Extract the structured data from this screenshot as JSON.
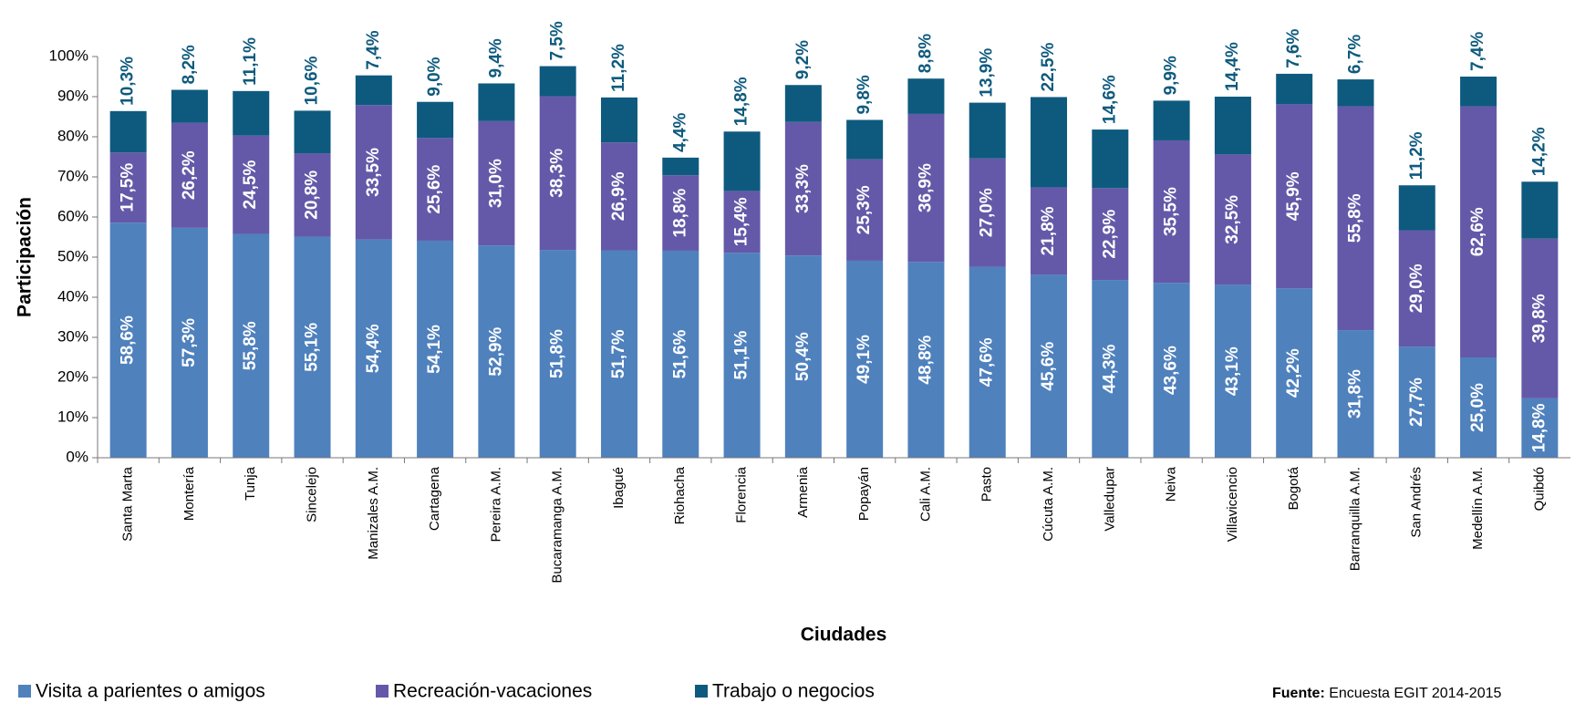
{
  "chart_data": {
    "type": "stacked_bar",
    "y_label": "Participación",
    "x_label": "Ciudades",
    "source_label": "Fuente:",
    "source_text": "Encuesta EGIT 2014-2015",
    "categories": [
      "Santa Marta",
      "Montería",
      "Tunja",
      "Sincelejo",
      "Manizales A.M.",
      "Cartagena",
      "Pereira A.M.",
      "Bucaramanga A.M.",
      "Ibagué",
      "Riohacha",
      "Florencia",
      "Armenia",
      "Popayán",
      "Cali A.M.",
      "Pasto",
      "Cúcuta A.M.",
      "Valledupar",
      "Neiva",
      "Villavicencio",
      "Bogotá",
      "Barranquilla A.M.",
      "San Andrés",
      "Medellín A.M.",
      "Quibdó"
    ],
    "series": [
      {
        "name": "Visita a parientes o amigos",
        "color": "#4f81bd",
        "values": [
          58.6,
          57.3,
          55.8,
          55.1,
          54.4,
          54.1,
          52.9,
          51.8,
          51.7,
          51.6,
          51.1,
          50.4,
          49.1,
          48.8,
          47.6,
          45.6,
          44.3,
          43.6,
          43.1,
          42.2,
          31.8,
          27.7,
          25.0,
          14.8
        ],
        "value_labels": [
          "58,6%",
          "57,3%",
          "55,8%",
          "55,1%",
          "54,4%",
          "54,1%",
          "52,9%",
          "51,8%",
          "51,7%",
          "51,6%",
          "51,1%",
          "50,4%",
          "49,1%",
          "48,8%",
          "47,6%",
          "45,6%",
          "44,3%",
          "43,6%",
          "43,1%",
          "42,2%",
          "31,8%",
          "27,7%",
          "25,0%",
          "14,8%"
        ]
      },
      {
        "name": "Recreación-vacaciones",
        "color": "#6459a8",
        "values": [
          17.5,
          26.2,
          24.5,
          20.8,
          33.5,
          25.6,
          31.0,
          38.3,
          26.9,
          18.8,
          15.4,
          33.3,
          25.3,
          36.9,
          27.0,
          21.8,
          22.9,
          35.5,
          32.5,
          45.9,
          55.8,
          29.0,
          62.6,
          39.8
        ],
        "value_labels": [
          "17,5%",
          "26,2%",
          "24,5%",
          "20,8%",
          "33,5%",
          "25,6%",
          "31,0%",
          "38,3%",
          "26,9%",
          "18,8%",
          "15,4%",
          "33,3%",
          "25,3%",
          "36,9%",
          "27,0%",
          "21,8%",
          "22,9%",
          "35,5%",
          "32,5%",
          "45,9%",
          "55,8%",
          "29,0%",
          "62,6%",
          "39,8%"
        ]
      },
      {
        "name": "Trabajo o negocios",
        "color": "#0e5a7e",
        "values": [
          10.3,
          8.2,
          11.1,
          10.6,
          7.4,
          9.0,
          9.4,
          7.5,
          11.2,
          4.4,
          14.8,
          9.2,
          9.8,
          8.8,
          13.9,
          22.5,
          14.6,
          9.9,
          14.4,
          7.6,
          6.7,
          11.2,
          7.4,
          14.2
        ],
        "value_labels": [
          "10,3%",
          "8,2%",
          "11,1%",
          "10,6%",
          "7,4%",
          "9,0%",
          "9,4%",
          "7,5%",
          "11,2%",
          "4,4%",
          "14,8%",
          "9,2%",
          "9,8%",
          "8,8%",
          "13,9%",
          "22,5%",
          "14,6%",
          "9,9%",
          "14,4%",
          "7,6%",
          "6,7%",
          "11,2%",
          "7,4%",
          "14,2%"
        ]
      }
    ],
    "ylim": [
      0,
      100
    ],
    "yticks": [
      {
        "value": 0,
        "label": "0%"
      },
      {
        "value": 10,
        "label": "10%"
      },
      {
        "value": 20,
        "label": "20%"
      },
      {
        "value": 30,
        "label": "30%"
      },
      {
        "value": 40,
        "label": "40%"
      },
      {
        "value": 50,
        "label": "50%"
      },
      {
        "value": 60,
        "label": "60%"
      },
      {
        "value": 70,
        "label": "70%"
      },
      {
        "value": 80,
        "label": "80%"
      },
      {
        "value": 90,
        "label": "90%"
      },
      {
        "value": 100,
        "label": "100%"
      }
    ],
    "grid": false
  }
}
